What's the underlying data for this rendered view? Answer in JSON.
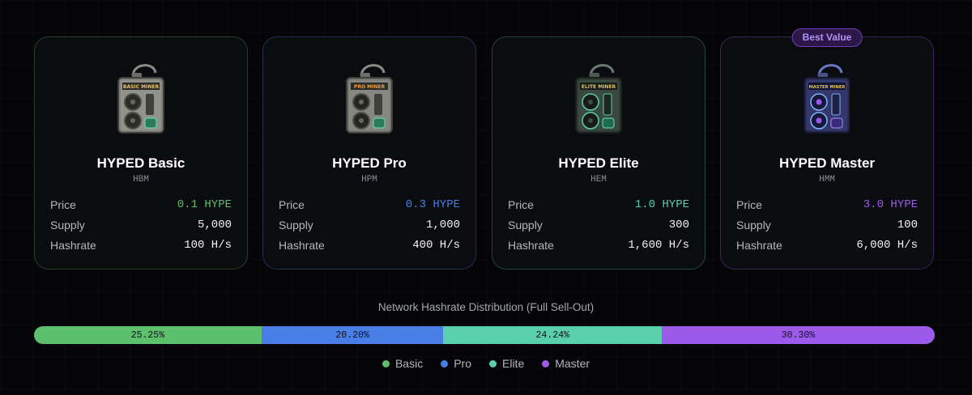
{
  "colors": {
    "basic": "#5dc06c",
    "pro": "#4a7ee7",
    "elite": "#59d0ab",
    "master": "#9c5aeb"
  },
  "labels": {
    "price": "Price",
    "supply": "Supply",
    "hashrate": "Hashrate"
  },
  "cards": [
    {
      "name": "HYPED Basic",
      "symbol": "HBM",
      "price": "0.1 HYPE",
      "supply": "5,000",
      "hashrate": "100 H/s",
      "image_label": "BASIC MINER",
      "icon": "basic-miner-icon"
    },
    {
      "name": "HYPED Pro",
      "symbol": "HPM",
      "price": "0.3 HYPE",
      "supply": "1,000",
      "hashrate": "400 H/s",
      "image_label": "PRO MINER",
      "icon": "pro-miner-icon"
    },
    {
      "name": "HYPED Elite",
      "symbol": "HEM",
      "price": "1.0 HYPE",
      "supply": "300",
      "hashrate": "1,600 H/s",
      "image_label": "ELITE MINER",
      "icon": "elite-miner-icon"
    },
    {
      "name": "HYPED Master",
      "symbol": "HMM",
      "price": "3.0 HYPE",
      "supply": "100",
      "hashrate": "6,000 H/s",
      "image_label": "MASTER MINER",
      "icon": "master-miner-icon",
      "badge": "Best Value"
    }
  ],
  "distribution": {
    "title": "Network Hashrate Distribution (Full Sell-Out)",
    "segments": [
      {
        "name": "Basic",
        "percent": 25.25,
        "label": "25.25%"
      },
      {
        "name": "Pro",
        "percent": 20.2,
        "label": "20.20%"
      },
      {
        "name": "Elite",
        "percent": 24.24,
        "label": "24.24%"
      },
      {
        "name": "Master",
        "percent": 30.3,
        "label": "30.30%"
      }
    ]
  }
}
